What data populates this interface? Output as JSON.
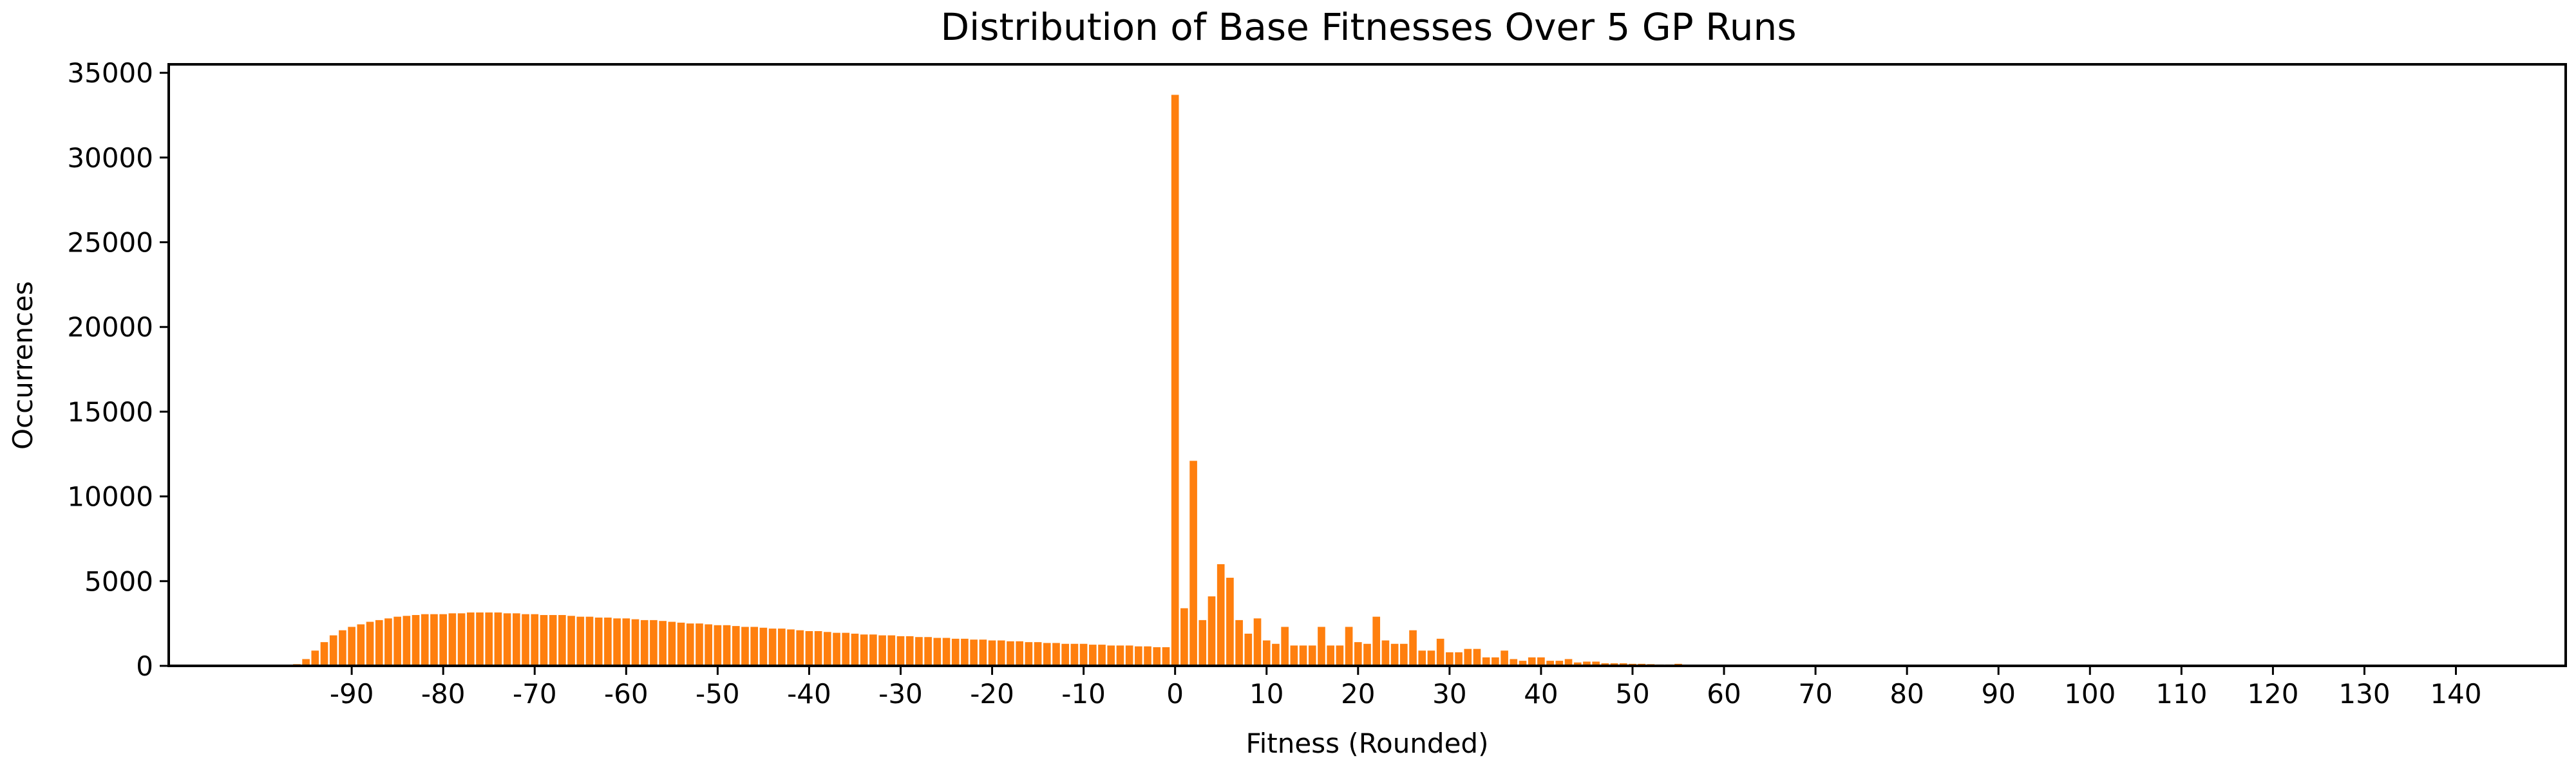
{
  "chart_data": {
    "type": "bar",
    "title": "Distribution of Base Fitnesses Over 5 GP Runs",
    "xlabel": "Fitness (Rounded)",
    "ylabel": "Occurrences",
    "xlim": [
      -110,
      152
    ],
    "ylim": [
      0,
      35500
    ],
    "xticks": [
      -90,
      -80,
      -70,
      -60,
      -50,
      -40,
      -30,
      -20,
      -10,
      0,
      10,
      20,
      30,
      40,
      50,
      60,
      70,
      80,
      90,
      100,
      110,
      120,
      130,
      140
    ],
    "yticks": [
      0,
      5000,
      10000,
      15000,
      20000,
      25000,
      30000,
      35000
    ],
    "bar_color": "#ff7f0e",
    "grid": false,
    "x_start": -96,
    "values": [
      100,
      400,
      900,
      1400,
      1800,
      2100,
      2300,
      2450,
      2600,
      2700,
      2800,
      2900,
      2950,
      3000,
      3050,
      3050,
      3050,
      3100,
      3100,
      3150,
      3150,
      3150,
      3150,
      3100,
      3100,
      3050,
      3050,
      3000,
      3000,
      3000,
      2950,
      2900,
      2900,
      2850,
      2850,
      2800,
      2800,
      2750,
      2700,
      2700,
      2650,
      2600,
      2550,
      2500,
      2500,
      2450,
      2400,
      2400,
      2350,
      2300,
      2300,
      2250,
      2200,
      2200,
      2150,
      2100,
      2050,
      2050,
      2000,
      1950,
      1950,
      1900,
      1850,
      1850,
      1800,
      1800,
      1750,
      1750,
      1700,
      1700,
      1650,
      1650,
      1600,
      1600,
      1550,
      1550,
      1500,
      1500,
      1450,
      1450,
      1400,
      1400,
      1350,
      1350,
      1300,
      1300,
      1300,
      1250,
      1250,
      1200,
      1200,
      1200,
      1150,
      1150,
      1100,
      1100,
      33700,
      3400,
      12100,
      2700,
      4100,
      6000,
      5200,
      2700,
      1900,
      2800,
      1500,
      1300,
      2300,
      1200,
      1200,
      1200,
      2300,
      1200,
      1200,
      2300,
      1400,
      1300,
      2900,
      1500,
      1300,
      1300,
      2100,
      900,
      900,
      1600,
      800,
      800,
      1000,
      1000,
      500,
      500,
      900,
      400,
      300,
      500,
      500,
      300,
      300,
      400,
      200,
      250,
      250,
      150,
      150,
      150,
      120,
      120,
      100,
      80,
      80,
      120,
      50,
      40,
      40,
      60,
      40,
      30
    ]
  }
}
